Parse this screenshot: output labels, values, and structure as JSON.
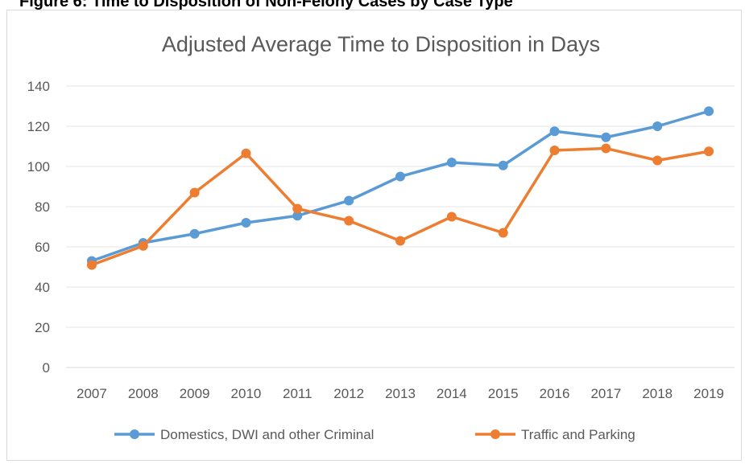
{
  "figure_caption": "Figure 6: Time to Disposition of Non-Felony Cases by Case Type",
  "chart_data": {
    "type": "line",
    "title": "Adjusted Average Time to Disposition in Days",
    "xlabel": "",
    "ylabel": "",
    "categories": [
      "2007",
      "2008",
      "2009",
      "2010",
      "2011",
      "2012",
      "2013",
      "2014",
      "2015",
      "2016",
      "2017",
      "2018",
      "2019"
    ],
    "y_ticks": [
      "0",
      "20",
      "40",
      "60",
      "80",
      "100",
      "120",
      "140"
    ],
    "ylim": [
      0,
      140
    ],
    "grid": true,
    "legend_position": "bottom",
    "series": [
      {
        "name": "Domestics, DWI and other Criminal",
        "color": "#5b9bd5",
        "values": [
          53,
          62,
          66.5,
          72,
          75.5,
          83,
          95,
          102,
          100.5,
          117.5,
          114.5,
          120,
          127.5
        ]
      },
      {
        "name": "Traffic and Parking",
        "color": "#ed7d31",
        "values": [
          51,
          60.5,
          87,
          106.5,
          79,
          73,
          63,
          75,
          67,
          108,
          109,
          103,
          107.5
        ]
      }
    ]
  }
}
